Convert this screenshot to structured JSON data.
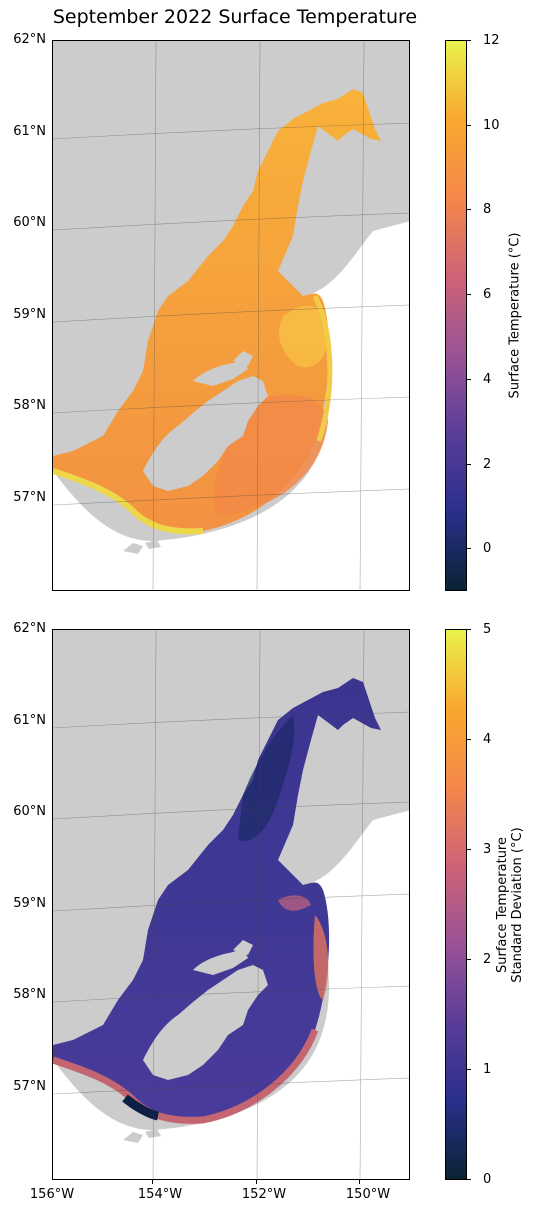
{
  "title": "September 2022 Surface Temperature",
  "map": {
    "lat_labels": [
      "62°N",
      "61°N",
      "60°N",
      "59°N",
      "58°N",
      "57°N"
    ],
    "lon_labels": [
      "156°W",
      "154°W",
      "152°W",
      "150°W"
    ],
    "land_color": "#cccccc",
    "ocean_color": "#ffffff"
  },
  "panels": [
    {
      "variable": "surface_temperature",
      "colorbar": {
        "label": "Surface Temperature (°C)",
        "ticks": [
          "12",
          "10",
          "8",
          "6",
          "4",
          "2",
          "0"
        ],
        "range": [
          -1,
          12
        ],
        "colormap": [
          "#0a2333",
          "#2a2f8c",
          "#5a3d99",
          "#9a5296",
          "#cf6376",
          "#f5874a",
          "#f9a82f",
          "#e9f24d"
        ],
        "dominant_color": "#f7a43b"
      }
    },
    {
      "variable": "surface_temperature_std",
      "colorbar": {
        "label_line1": "Surface Temperature",
        "label_line2": "Standard Deviation (°C)",
        "ticks": [
          "5",
          "4",
          "3",
          "2",
          "1",
          "0"
        ],
        "range": [
          0,
          5
        ],
        "colormap": [
          "#0a2333",
          "#2a2f8c",
          "#5a3d99",
          "#9a5296",
          "#cf6376",
          "#f5874a",
          "#f9a82f",
          "#e9f24d"
        ],
        "dominant_color": "#3a358f"
      }
    }
  ]
}
